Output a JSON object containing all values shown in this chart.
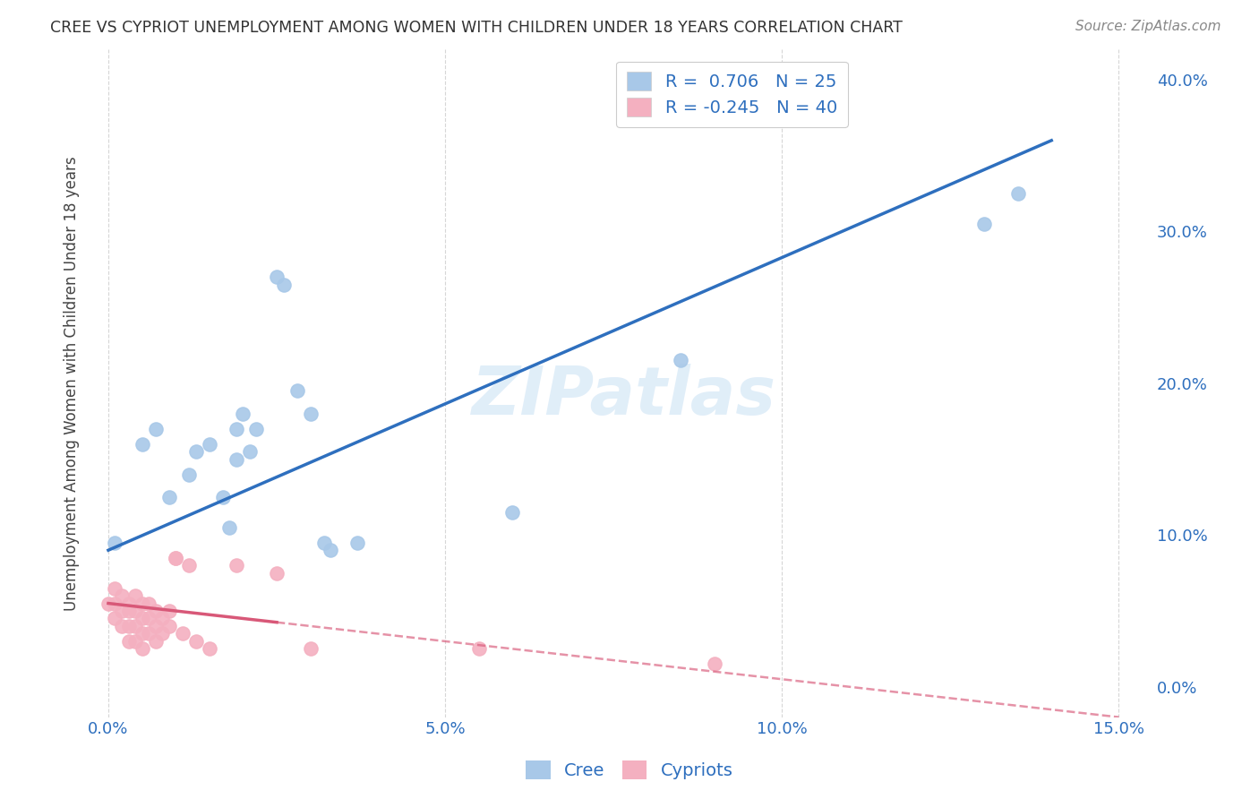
{
  "title": "CREE VS CYPRIOT UNEMPLOYMENT AMONG WOMEN WITH CHILDREN UNDER 18 YEARS CORRELATION CHART",
  "source": "Source: ZipAtlas.com",
  "ylabel": "Unemployment Among Women with Children Under 18 years",
  "xlabel_vals": [
    0.0,
    0.05,
    0.1,
    0.15
  ],
  "ylabel_vals": [
    0.0,
    0.1,
    0.2,
    0.3,
    0.4
  ],
  "xlim": [
    -0.002,
    0.155
  ],
  "ylim": [
    -0.02,
    0.42
  ],
  "watermark": "ZIPatlas",
  "legend_cree_R": "0.706",
  "legend_cree_N": "25",
  "legend_cypriot_R": "-0.245",
  "legend_cypriot_N": "40",
  "cree_color": "#a8c8e8",
  "cypriot_color": "#f4b0c0",
  "cree_line_color": "#2e6fbe",
  "cypriot_line_color": "#d85878",
  "cree_scatter": [
    [
      0.001,
      0.095
    ],
    [
      0.005,
      0.16
    ],
    [
      0.007,
      0.17
    ],
    [
      0.009,
      0.125
    ],
    [
      0.012,
      0.14
    ],
    [
      0.013,
      0.155
    ],
    [
      0.015,
      0.16
    ],
    [
      0.017,
      0.125
    ],
    [
      0.018,
      0.105
    ],
    [
      0.019,
      0.15
    ],
    [
      0.019,
      0.17
    ],
    [
      0.02,
      0.18
    ],
    [
      0.021,
      0.155
    ],
    [
      0.022,
      0.17
    ],
    [
      0.025,
      0.27
    ],
    [
      0.026,
      0.265
    ],
    [
      0.028,
      0.195
    ],
    [
      0.03,
      0.18
    ],
    [
      0.032,
      0.095
    ],
    [
      0.033,
      0.09
    ],
    [
      0.037,
      0.095
    ],
    [
      0.06,
      0.115
    ],
    [
      0.085,
      0.215
    ],
    [
      0.13,
      0.305
    ],
    [
      0.135,
      0.325
    ]
  ],
  "cypriot_scatter": [
    [
      0.0,
      0.055
    ],
    [
      0.001,
      0.065
    ],
    [
      0.001,
      0.055
    ],
    [
      0.001,
      0.045
    ],
    [
      0.002,
      0.06
    ],
    [
      0.002,
      0.05
    ],
    [
      0.002,
      0.04
    ],
    [
      0.003,
      0.055
    ],
    [
      0.003,
      0.05
    ],
    [
      0.003,
      0.04
    ],
    [
      0.003,
      0.03
    ],
    [
      0.004,
      0.06
    ],
    [
      0.004,
      0.05
    ],
    [
      0.004,
      0.04
    ],
    [
      0.004,
      0.03
    ],
    [
      0.005,
      0.055
    ],
    [
      0.005,
      0.045
    ],
    [
      0.005,
      0.035
    ],
    [
      0.005,
      0.025
    ],
    [
      0.006,
      0.055
    ],
    [
      0.006,
      0.045
    ],
    [
      0.006,
      0.035
    ],
    [
      0.007,
      0.05
    ],
    [
      0.007,
      0.04
    ],
    [
      0.007,
      0.03
    ],
    [
      0.008,
      0.045
    ],
    [
      0.008,
      0.035
    ],
    [
      0.009,
      0.05
    ],
    [
      0.009,
      0.04
    ],
    [
      0.01,
      0.085
    ],
    [
      0.01,
      0.085
    ],
    [
      0.011,
      0.035
    ],
    [
      0.012,
      0.08
    ],
    [
      0.013,
      0.03
    ],
    [
      0.015,
      0.025
    ],
    [
      0.019,
      0.08
    ],
    [
      0.025,
      0.075
    ],
    [
      0.03,
      0.025
    ],
    [
      0.055,
      0.025
    ],
    [
      0.09,
      0.015
    ]
  ],
  "cree_trendline_x": [
    0.0,
    0.14
  ],
  "cree_trendline_y": [
    0.09,
    0.36
  ],
  "cypriot_trendline_x": [
    0.0,
    0.15
  ],
  "cypriot_trendline_y": [
    0.055,
    -0.02
  ],
  "cypriot_trendline_solid_end_x": 0.025,
  "axis_left_color": "#888888",
  "axis_bottom_color": "#888888",
  "tick_color": "#2e6fbe",
  "grid_color": "#cccccc",
  "ylabel_color": "#444444",
  "title_color": "#333333",
  "source_color": "#888888",
  "legend_label_color": "#2e6fbe"
}
